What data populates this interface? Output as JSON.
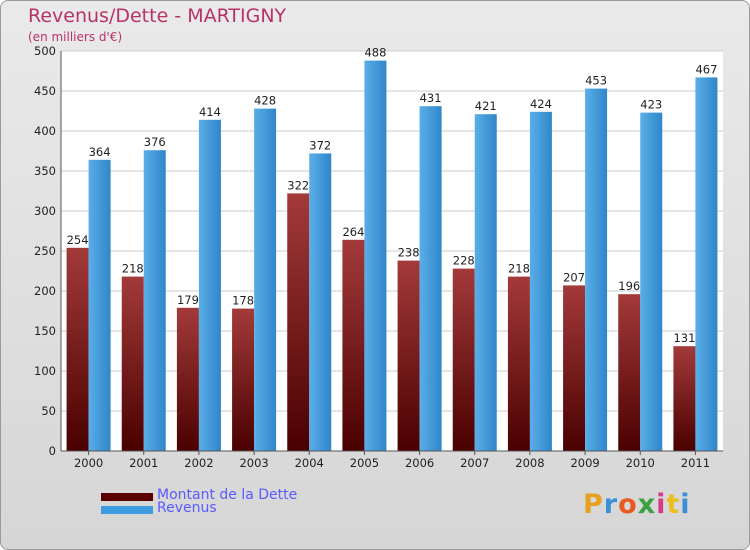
{
  "header": {
    "title": "Revenus/Dette - MARTIGNY",
    "subtitle": "(en milliers d'€)"
  },
  "legend": {
    "items": [
      {
        "label": "Montant de la Dette",
        "color": "#7a1010"
      },
      {
        "label": "Revenus",
        "color": "#3d9de0"
      }
    ]
  },
  "logo": {
    "text": "Proxiti"
  },
  "chart_data": {
    "type": "bar",
    "title": "Revenus/Dette - MARTIGNY",
    "subtitle": "(en milliers d'€)",
    "categories": [
      "2000",
      "2001",
      "2002",
      "2003",
      "2004",
      "2005",
      "2006",
      "2007",
      "2008",
      "2009",
      "2010",
      "2011"
    ],
    "series": [
      {
        "name": "Montant de la Dette",
        "color": "#7a1010",
        "values": [
          254,
          218,
          179,
          178,
          322,
          264,
          238,
          228,
          218,
          207,
          196,
          131
        ]
      },
      {
        "name": "Revenus",
        "color": "#3d9de0",
        "values": [
          364,
          376,
          414,
          428,
          372,
          488,
          431,
          421,
          424,
          453,
          423,
          467
        ]
      }
    ],
    "ylim": [
      0,
      500
    ],
    "yticks": [
      0,
      50,
      100,
      150,
      200,
      250,
      300,
      350,
      400,
      450,
      500
    ],
    "grid": true,
    "legend_position": "bottom-left",
    "data_labels": true
  }
}
